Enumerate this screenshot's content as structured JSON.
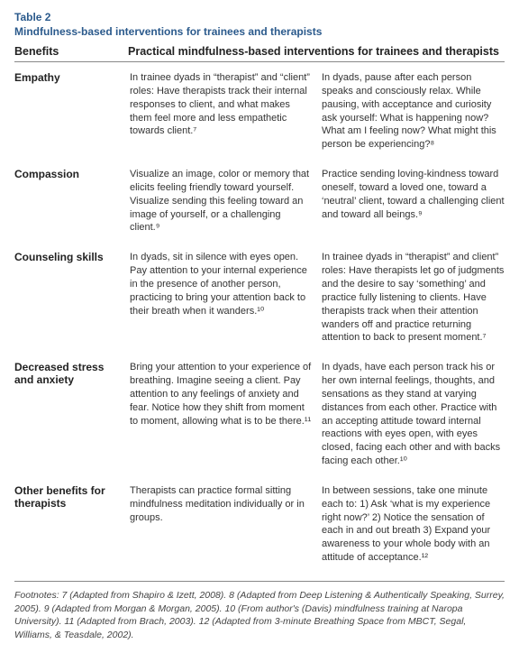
{
  "table_label": "Table 2",
  "table_title": "Mindfulness-based interventions for trainees and therapists",
  "header": {
    "benefits": "Benefits",
    "practical": "Practical mindfulness-based interventions for trainees and therapists"
  },
  "rows": [
    {
      "benefit": "Empathy",
      "col1": "In trainee dyads in “therapist” and “client” roles: Have therapists track their internal responses to client, and what makes them feel more and less empathetic towards client.⁷",
      "col2": "In dyads, pause after each person speaks and consciously relax. While pausing, with acceptance and curiosity ask yourself: What is happening now? What am I feeling now? What might this person be experiencing?⁸"
    },
    {
      "benefit": "Compassion",
      "col1": "Visualize an image, color or memory that elicits feeling friendly toward yourself. Visualize sending this feeling toward an image of yourself, or a challenging client.⁹",
      "col2": "Practice sending loving-kindness toward oneself, toward a loved one, toward a ‘neutral’ client, toward a challenging client and toward all beings.⁹"
    },
    {
      "benefit": "Counseling skills",
      "col1": "In dyads, sit in silence with eyes open. Pay attention to your internal experience in the presence of another person, practicing to bring your attention back to their breath when it wanders.¹⁰",
      "col2": "In trainee dyads in “therapist” and client” roles: Have therapists let go of judgments and the desire to say ‘something’ and practice fully listening to clients. Have therapists track when their attention wanders off and practice returning attention to back to present moment.⁷"
    },
    {
      "benefit": "Decreased stress and anxiety",
      "col1": "Bring your attention to your experience of breathing. Imagine seeing a client. Pay attention to any feelings of anxiety and fear. Notice how they shift from moment to moment, allowing what is to be there.¹¹",
      "col2": "In dyads, have each person track his or her own internal feelings, thoughts, and sensations as they stand at varying distances from each other. Practice with an accepting attitude toward internal reactions with eyes open, with eyes closed, facing each other and with backs facing each other.¹⁰"
    },
    {
      "benefit": "Other benefits for therapists",
      "col1": "Therapists can practice formal sitting mindfulness meditation individually or in groups.",
      "col2": "In between sessions, take one minute each to: 1) Ask ‘what is my experience right now?’ 2) Notice the sensation of each in and out breath 3) Expand your awareness to your whole body with an attitude of acceptance.¹²"
    }
  ],
  "footnotes": "Footnotes: 7 (Adapted from Shapiro & Izett, 2008). 8 (Adapted from Deep Listening & Authentically Speaking, Surrey, 2005). 9 (Adapted from Morgan & Morgan, 2005). 10 (From author's (Davis) mindfulness training at Naropa University). 11 (Adapted from Brach, 2003). 12 (Adapted from 3-minute Breathing Space from MBCT, Segal, Williams, & Teasdale, 2002).",
  "colors": {
    "heading": "#2b5a8c",
    "text": "#333333",
    "border": "#888888",
    "background": "#ffffff"
  },
  "fonts": {
    "family": "Arial, Helvetica, sans-serif",
    "heading_size_pt": 12,
    "body_size_pt": 11,
    "footnote_size_pt": 10.5
  }
}
